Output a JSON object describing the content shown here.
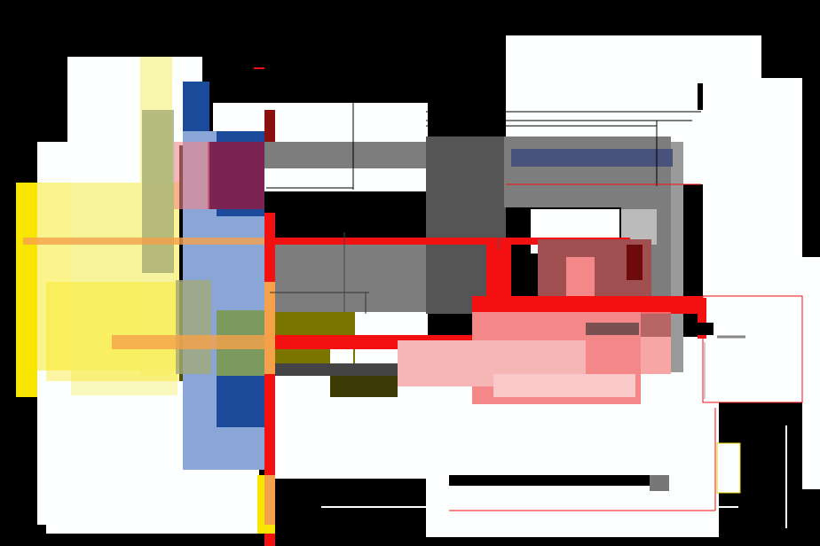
{
  "palette": {
    "background": "#000000",
    "white": "#fdfefe",
    "yellow": "#f8e600",
    "pale_yellow": "#f7f3a0",
    "red": "#f21010",
    "dark_red": "#8b0f0f",
    "pink": "#f48787",
    "blue": "#1b4a9a",
    "light_blue": "#8aa6d6",
    "gray": "#7d7d7d",
    "dark_gray": "#555555",
    "olive": "#7b7400",
    "maroon": "#7b2452",
    "orange": "#f5a14a"
  }
}
